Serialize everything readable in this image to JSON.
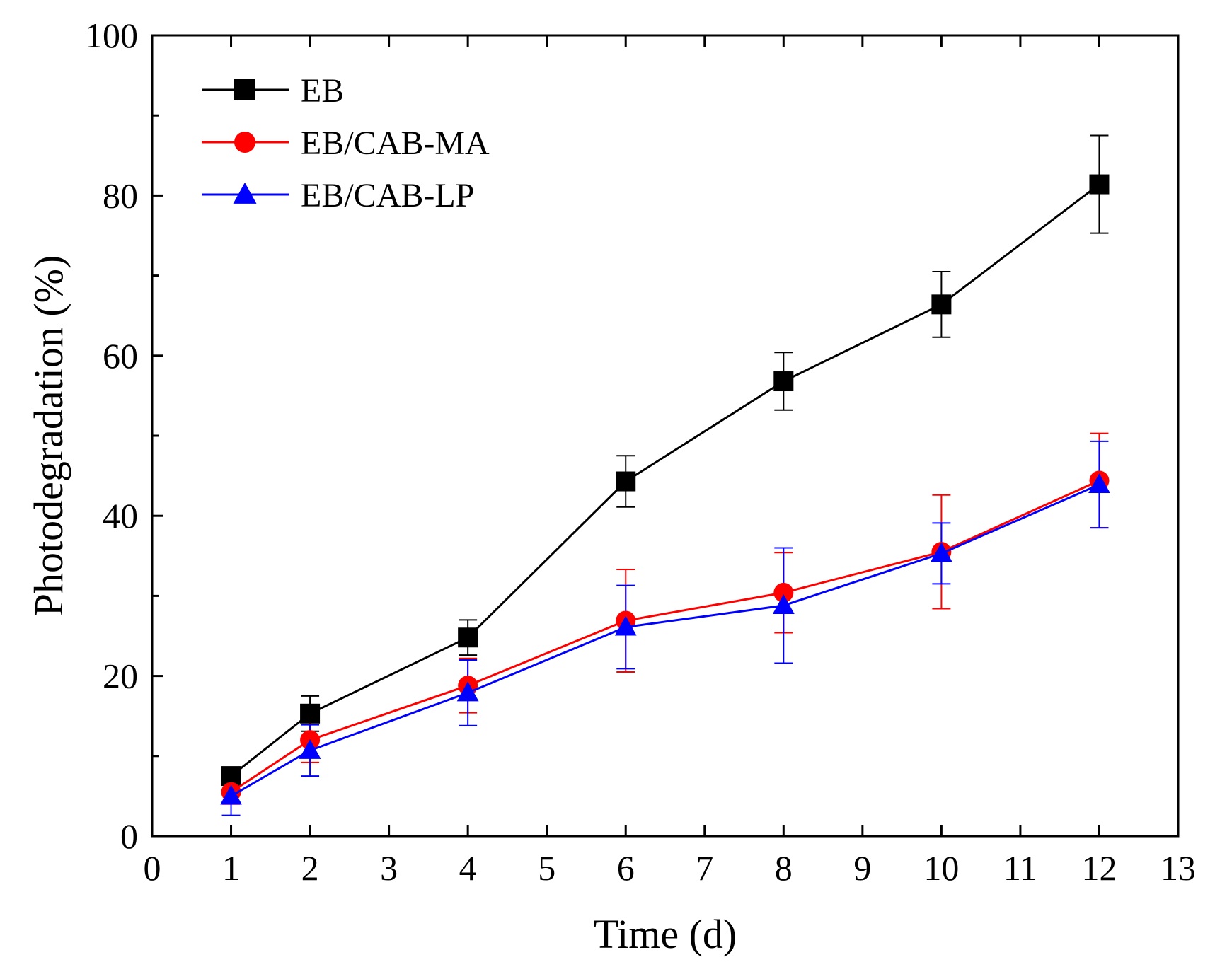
{
  "chart_data": {
    "type": "line",
    "title": "",
    "xlabel": "Time (d)",
    "ylabel": "Photodegradation (%)",
    "xlim": [
      0,
      13
    ],
    "ylim": [
      0,
      100
    ],
    "x_ticks": [
      0,
      1,
      2,
      3,
      4,
      5,
      6,
      7,
      8,
      9,
      10,
      11,
      12,
      13
    ],
    "y_ticks": [
      0,
      20,
      40,
      60,
      80,
      100
    ],
    "grid": false,
    "legend_position": "top-left",
    "series": [
      {
        "name": "EB",
        "color": "#000000",
        "marker": "square",
        "x": [
          1,
          2,
          4,
          6,
          8,
          10,
          12
        ],
        "y": [
          7.5,
          15.3,
          24.8,
          44.3,
          56.8,
          66.4,
          81.4
        ],
        "error": [
          1.0,
          2.2,
          2.2,
          3.2,
          3.6,
          4.1,
          6.1
        ]
      },
      {
        "name": "EB/CAB-MA",
        "color": "#ff0000",
        "marker": "circle",
        "x": [
          1,
          2,
          4,
          6,
          8,
          10,
          12
        ],
        "y": [
          5.5,
          12.0,
          18.8,
          26.9,
          30.4,
          35.5,
          44.4
        ],
        "error": [
          1.5,
          2.8,
          3.4,
          6.4,
          5.0,
          7.1,
          5.9
        ]
      },
      {
        "name": "EB/CAB-LP",
        "color": "#0000ff",
        "marker": "triangle",
        "x": [
          1,
          2,
          4,
          6,
          8,
          10,
          12
        ],
        "y": [
          5.0,
          10.7,
          17.9,
          26.1,
          28.8,
          35.3,
          43.9
        ],
        "error": [
          2.4,
          3.2,
          4.1,
          5.2,
          7.2,
          3.8,
          5.4
        ]
      }
    ]
  }
}
